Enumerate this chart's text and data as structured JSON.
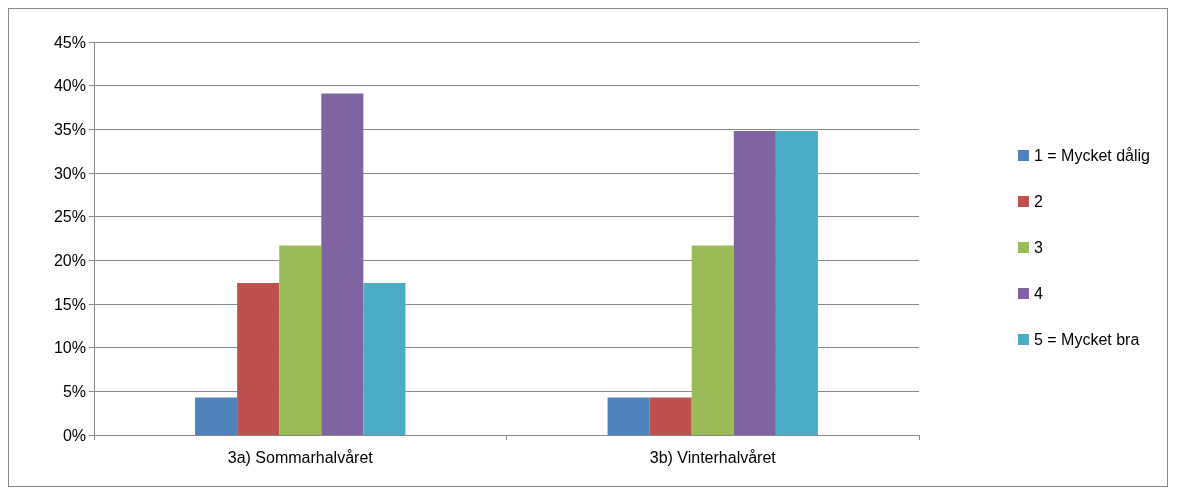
{
  "chart_data": {
    "type": "bar",
    "categories": [
      "3a) Sommarhalvåret",
      "3b) Vinterhalvåret"
    ],
    "series": [
      {
        "name": "1 = Mycket dålig",
        "color": "#4f81bd",
        "values": [
          4.3,
          4.3
        ]
      },
      {
        "name": "2",
        "color": "#c0504d",
        "values": [
          17.4,
          4.3
        ]
      },
      {
        "name": "3",
        "color": "#9bbb59",
        "values": [
          21.7,
          21.7
        ]
      },
      {
        "name": "4",
        "color": "#8064a2",
        "values": [
          39.1,
          34.8
        ]
      },
      {
        "name": "5 = Mycket bra",
        "color": "#4bacc6",
        "values": [
          17.4,
          34.8
        ]
      }
    ],
    "ylim": [
      0,
      45
    ],
    "yticks": [
      {
        "value": 0,
        "label": "0%"
      },
      {
        "value": 5,
        "label": "5%"
      },
      {
        "value": 10,
        "label": "10%"
      },
      {
        "value": 15,
        "label": "15%"
      },
      {
        "value": 20,
        "label": "20%"
      },
      {
        "value": 25,
        "label": "25%"
      },
      {
        "value": 30,
        "label": "30%"
      },
      {
        "value": 35,
        "label": "35%"
      },
      {
        "value": 40,
        "label": "40%"
      },
      {
        "value": 45,
        "label": "45%"
      }
    ],
    "grid": "y",
    "legend": "right"
  }
}
